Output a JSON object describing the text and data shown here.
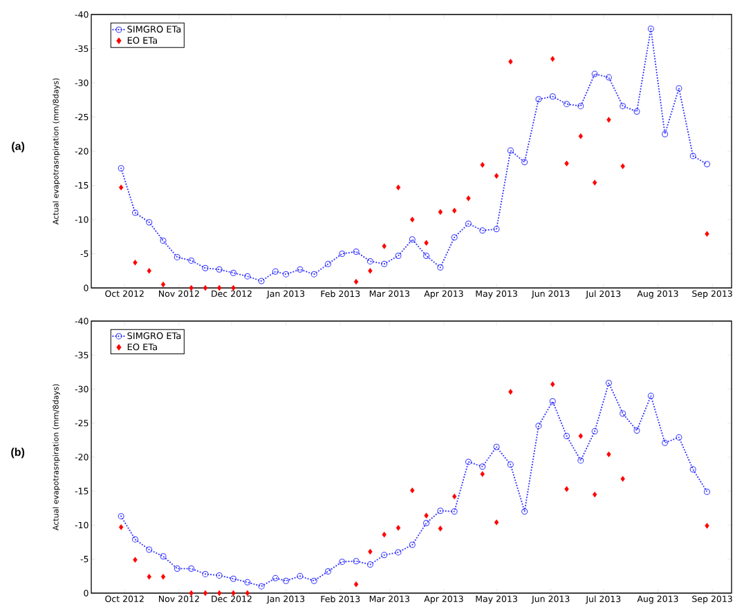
{
  "chart_data": [
    {
      "type": "line",
      "title": "(a)",
      "ylabel": "Actual evapotrasnpiration (mm/8days)",
      "x": [
        "2012-09-29",
        "2012-10-07",
        "2012-10-15",
        "2012-10-23",
        "2012-10-31",
        "2012-11-08",
        "2012-11-16",
        "2012-11-24",
        "2012-12-02",
        "2012-12-10",
        "2012-12-18",
        "2012-12-26",
        "2013-01-01",
        "2013-01-09",
        "2013-01-17",
        "2013-01-25",
        "2013-02-02",
        "2013-02-10",
        "2013-02-18",
        "2013-02-26",
        "2013-03-06",
        "2013-03-14",
        "2013-03-22",
        "2013-03-30",
        "2013-04-07",
        "2013-04-15",
        "2013-04-23",
        "2013-05-01",
        "2013-05-09",
        "2013-05-17",
        "2013-05-25",
        "2013-06-02",
        "2013-06-10",
        "2013-06-18",
        "2013-06-26",
        "2013-07-04",
        "2013-07-12",
        "2013-07-20",
        "2013-07-28",
        "2013-08-05",
        "2013-08-13",
        "2013-08-21",
        "2013-08-29"
      ],
      "series": [
        {
          "name": "SIMGRO ETa",
          "color": "#3333ff",
          "marker": "circle",
          "line_style": "dotted",
          "values": [
            -17.5,
            -11.0,
            -9.6,
            -6.9,
            -4.5,
            -4.0,
            -2.9,
            -2.7,
            -2.2,
            -1.7,
            -1.0,
            -2.4,
            -2.0,
            -2.7,
            -2.0,
            -3.5,
            -5.0,
            -5.3,
            -3.9,
            -3.5,
            -4.7,
            -7.1,
            -4.7,
            -3.0,
            -7.4,
            -9.4,
            -8.4,
            -8.6,
            -20.1,
            -18.4,
            -27.6,
            -28.0,
            -26.9,
            -26.6,
            -31.3,
            -30.8,
            -26.6,
            -25.8,
            -37.9,
            -22.5,
            -29.2,
            -19.3,
            -18.1
          ]
        },
        {
          "name": "EO ETa",
          "type": "scatter",
          "color": "#ff0000",
          "marker": "diamond",
          "values": [
            -14.7,
            -3.7,
            -2.5,
            -0.5,
            null,
            0,
            0,
            0,
            0,
            null,
            null,
            null,
            null,
            null,
            null,
            null,
            null,
            -0.9,
            -2.5,
            -6.1,
            -14.7,
            -10.0,
            -6.6,
            -11.1,
            -11.3,
            -13.1,
            -18.0,
            -16.4,
            -33.1,
            null,
            null,
            -33.5,
            -18.2,
            -22.2,
            -15.4,
            -24.6,
            -17.8,
            null,
            null,
            null,
            null,
            null,
            -7.9
          ]
        }
      ],
      "xlim": [
        "2012-09-12",
        "2013-09-12"
      ],
      "xticks": [
        {
          "value": "2012-10-01",
          "label": "Oct 2012"
        },
        {
          "value": "2012-11-01",
          "label": "Nov 2012"
        },
        {
          "value": "2012-12-01",
          "label": "Dec 2012"
        },
        {
          "value": "2013-01-01",
          "label": "Jan 2013"
        },
        {
          "value": "2013-02-01",
          "label": "Feb 2013"
        },
        {
          "value": "2013-03-01",
          "label": "Mar 2013"
        },
        {
          "value": "2013-04-01",
          "label": "Apr 2013"
        },
        {
          "value": "2013-05-01",
          "label": "May 2013"
        },
        {
          "value": "2013-06-01",
          "label": "Jun 2013"
        },
        {
          "value": "2013-07-01",
          "label": "Jul 2013"
        },
        {
          "value": "2013-08-01",
          "label": "Aug 2013"
        },
        {
          "value": "2013-09-01",
          "label": "Sep 2013"
        }
      ],
      "ylim": [
        0,
        -40
      ],
      "yticks": [
        0,
        -5,
        -10,
        -15,
        -20,
        -25,
        -30,
        -35,
        -40
      ],
      "legend": "top left",
      "grid": false
    },
    {
      "type": "line",
      "title": "(b)",
      "ylabel": "Actual evapotrasnpiration (mm/8days)",
      "x": [
        "2012-09-29",
        "2012-10-07",
        "2012-10-15",
        "2012-10-23",
        "2012-10-31",
        "2012-11-08",
        "2012-11-16",
        "2012-11-24",
        "2012-12-02",
        "2012-12-10",
        "2012-12-18",
        "2012-12-26",
        "2013-01-01",
        "2013-01-09",
        "2013-01-17",
        "2013-01-25",
        "2013-02-02",
        "2013-02-10",
        "2013-02-18",
        "2013-02-26",
        "2013-03-06",
        "2013-03-14",
        "2013-03-22",
        "2013-03-30",
        "2013-04-07",
        "2013-04-15",
        "2013-04-23",
        "2013-05-01",
        "2013-05-09",
        "2013-05-17",
        "2013-05-25",
        "2013-06-02",
        "2013-06-10",
        "2013-06-18",
        "2013-06-26",
        "2013-07-04",
        "2013-07-12",
        "2013-07-20",
        "2013-07-28",
        "2013-08-05",
        "2013-08-13",
        "2013-08-21",
        "2013-08-29"
      ],
      "series": [
        {
          "name": "SIMGRO ETa",
          "color": "#3333ff",
          "marker": "circle",
          "line_style": "dotted",
          "values": [
            -11.3,
            -7.9,
            -6.4,
            -5.4,
            -3.6,
            -3.6,
            -2.8,
            -2.6,
            -2.1,
            -1.6,
            -1.0,
            -2.2,
            -1.8,
            -2.5,
            -1.8,
            -3.2,
            -4.6,
            -4.7,
            -4.2,
            -5.6,
            -6.0,
            -7.1,
            -10.3,
            -12.1,
            -12.0,
            -19.3,
            -18.6,
            -21.5,
            -18.9,
            -12.0,
            -24.6,
            -28.2,
            -23.1,
            -19.5,
            -23.8,
            -30.9,
            -26.4,
            -23.9,
            -29.0,
            -22.1,
            -22.9,
            -18.2,
            -14.9
          ]
        },
        {
          "name": "EO ETa",
          "type": "scatter",
          "color": "#ff0000",
          "marker": "diamond",
          "values": [
            -9.7,
            -4.9,
            -2.4,
            -2.4,
            null,
            0,
            0,
            0,
            0,
            0,
            null,
            null,
            null,
            null,
            null,
            null,
            null,
            -1.3,
            -6.1,
            -8.6,
            -9.6,
            -15.1,
            -11.4,
            -9.5,
            -14.2,
            null,
            -17.5,
            -10.4,
            -29.6,
            null,
            null,
            -30.7,
            -15.3,
            -23.1,
            -14.5,
            -20.4,
            -16.8,
            null,
            null,
            null,
            null,
            null,
            -9.9
          ]
        }
      ],
      "xlim": [
        "2012-09-12",
        "2013-09-12"
      ],
      "xticks": [
        {
          "value": "2012-10-01",
          "label": "Oct 2012"
        },
        {
          "value": "2012-11-01",
          "label": "Nov 2012"
        },
        {
          "value": "2012-12-01",
          "label": "Dec 2012"
        },
        {
          "value": "2013-01-01",
          "label": "Jan 2013"
        },
        {
          "value": "2013-02-01",
          "label": "Feb 2013"
        },
        {
          "value": "2013-03-01",
          "label": "Mar 2013"
        },
        {
          "value": "2013-04-01",
          "label": "Apr 2013"
        },
        {
          "value": "2013-05-01",
          "label": "May 2013"
        },
        {
          "value": "2013-06-01",
          "label": "Jun 2013"
        },
        {
          "value": "2013-07-01",
          "label": "Jul 2013"
        },
        {
          "value": "2013-08-01",
          "label": "Aug 2013"
        },
        {
          "value": "2013-09-01",
          "label": "Sep 2013"
        }
      ],
      "ylim": [
        0,
        -40
      ],
      "yticks": [
        0,
        -5,
        -10,
        -15,
        -20,
        -25,
        -30,
        -35,
        -40
      ],
      "legend": "top left",
      "grid": false
    }
  ]
}
